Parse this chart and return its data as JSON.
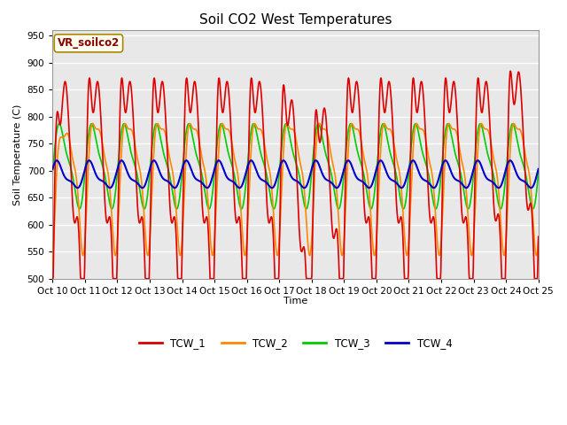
{
  "title": "Soil CO2 West Temperatures",
  "ylabel": "Soil Temperature (C)",
  "xlabel": "Time",
  "ylim": [
    500,
    960
  ],
  "yticks": [
    500,
    550,
    600,
    650,
    700,
    750,
    800,
    850,
    900,
    950
  ],
  "x_tick_labels": [
    "Oct 10",
    "Oct 11",
    "Oct 12",
    "Oct 13",
    "Oct 14",
    "Oct 15",
    "Oct 16",
    "Oct 17",
    "Oct 18",
    "Oct 19",
    "Oct 20",
    "Oct 21",
    "Oct 22",
    "Oct 23",
    "Oct 24",
    "Oct 25"
  ],
  "colors": {
    "TCW_1": "#dd0000",
    "TCW_2": "#ff8800",
    "TCW_3": "#00cc00",
    "TCW_4": "#0000cc"
  },
  "fig_bg": "#ffffff",
  "plot_bg": "#e8e8e8",
  "vr_label": "VR_soilco2",
  "legend_entries": [
    "TCW_1",
    "TCW_2",
    "TCW_3",
    "TCW_4"
  ]
}
